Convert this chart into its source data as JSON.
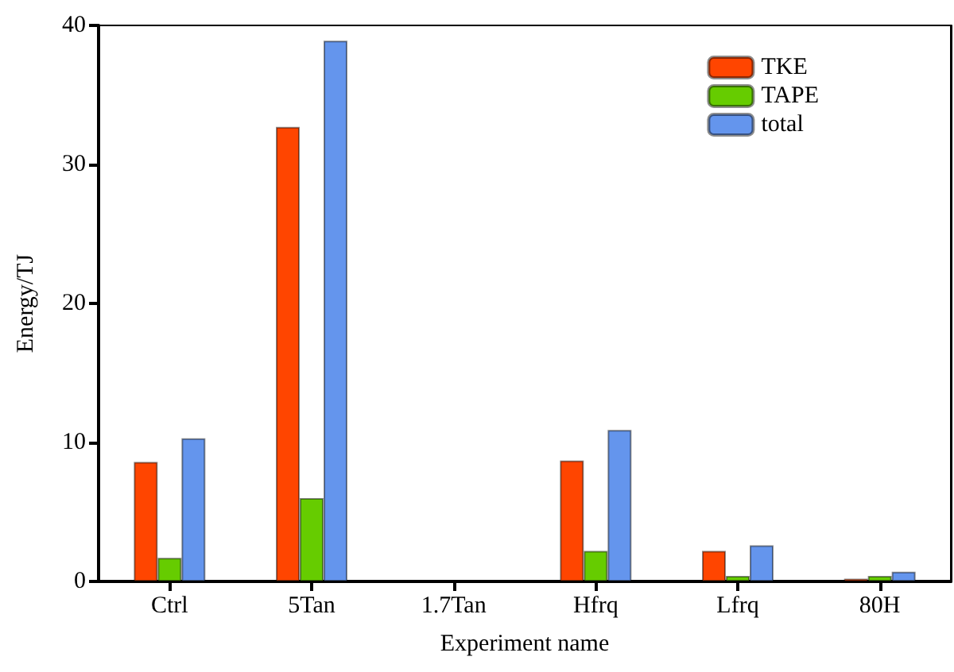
{
  "chart_data": {
    "type": "bar",
    "xlabel": "Experiment name",
    "ylabel": "Energy/TJ",
    "categories": [
      "Ctrl",
      "5Tan",
      "1.7Tan",
      "Hfrq",
      "Lfrq",
      "80H"
    ],
    "series": [
      {
        "name": "TKE",
        "color": "#ff4500",
        "values": [
          8.6,
          32.7,
          null,
          8.7,
          2.2,
          0.2
        ]
      },
      {
        "name": "TAPE",
        "color": "#66cc00",
        "values": [
          1.7,
          6.0,
          null,
          2.2,
          0.4,
          0.4
        ]
      },
      {
        "name": "total",
        "color": "#6495ed",
        "values": [
          10.3,
          38.9,
          null,
          10.9,
          2.6,
          0.7
        ]
      }
    ],
    "ylim": [
      0,
      40
    ],
    "yticks": [
      0,
      10,
      20,
      30,
      40
    ],
    "grid": false,
    "legend": "top right"
  }
}
